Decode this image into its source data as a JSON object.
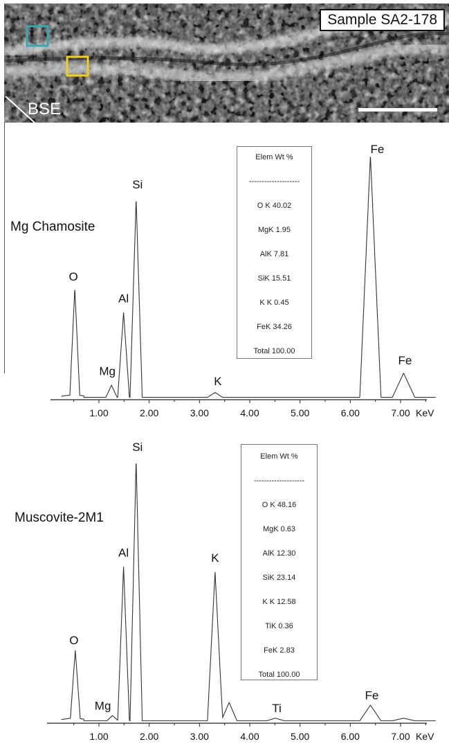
{
  "image": {
    "sample_label": "Sample SA2-178",
    "mode_label": "BSE",
    "analysis_box_colors": [
      "#3aa6ad",
      "#f2cf1e"
    ]
  },
  "chart_data": [
    {
      "type": "line",
      "title": "Mg Chamosite",
      "xlabel": "KeV",
      "xlim": [
        0,
        8
      ],
      "x_ticks": [
        "1.00",
        "2.00",
        "3.00",
        "4.00",
        "5.00",
        "6.00",
        "7.00"
      ],
      "peaks": [
        {
          "label": "O",
          "x": 0.52,
          "height": 0.44
        },
        {
          "label": "Mg",
          "x": 1.25,
          "height": 0.05
        },
        {
          "label": "Al",
          "x": 1.49,
          "height": 0.35
        },
        {
          "label": "Si",
          "x": 1.74,
          "height": 0.82
        },
        {
          "label": "K",
          "x": 3.31,
          "height": 0.02
        },
        {
          "label": "Fe",
          "x": 6.4,
          "height": 1.0
        },
        {
          "label": "Fe",
          "x": 7.06,
          "height": 0.1
        }
      ],
      "composition": {
        "header": [
          "Elem",
          "Wt %"
        ],
        "separator": "--------------------",
        "rows": [
          {
            "elem": "O K",
            "wt": "40.02"
          },
          {
            "elem": "MgK",
            "wt": "1.95"
          },
          {
            "elem": "AlK",
            "wt": "7.81"
          },
          {
            "elem": "SiK",
            "wt": "15.51"
          },
          {
            "elem": "K K",
            "wt": "0.45"
          },
          {
            "elem": "FeK",
            "wt": "34.26"
          },
          {
            "elem": "Total",
            "wt": "100.00"
          }
        ]
      }
    },
    {
      "type": "line",
      "title": "Muscovite-2M1",
      "xlabel": "KeV",
      "xlim": [
        0,
        8
      ],
      "x_ticks": [
        "1.00",
        "2.00",
        "3.00",
        "4.00",
        "5.00",
        "6.00",
        "7.00"
      ],
      "peaks": [
        {
          "label": "O",
          "x": 0.53,
          "height": 0.26
        },
        {
          "label": "Mg",
          "x": 1.27,
          "height": 0.02
        },
        {
          "label": "Al",
          "x": 1.49,
          "height": 0.59
        },
        {
          "label": "Si",
          "x": 1.74,
          "height": 1.0
        },
        {
          "label": "K",
          "x": 3.31,
          "height": 0.57
        },
        {
          "label": "",
          "x": 3.59,
          "height": 0.07
        },
        {
          "label": "Ti",
          "x": 4.51,
          "height": 0.01
        },
        {
          "label": "Fe",
          "x": 6.4,
          "height": 0.06
        },
        {
          "label": "",
          "x": 7.06,
          "height": 0.01
        }
      ],
      "composition": {
        "header": [
          "Elem",
          "Wt %"
        ],
        "separator": "--------------------",
        "rows": [
          {
            "elem": "O K",
            "wt": "48.16"
          },
          {
            "elem": "MgK",
            "wt": "0.63"
          },
          {
            "elem": "AlK",
            "wt": "12.30"
          },
          {
            "elem": "SiK",
            "wt": "23.14"
          },
          {
            "elem": "K K",
            "wt": "12.58"
          },
          {
            "elem": "TiK",
            "wt": "0.36"
          },
          {
            "elem": "FeK",
            "wt": "2.83"
          },
          {
            "elem": "Total",
            "wt": "100.00"
          }
        ]
      }
    }
  ]
}
